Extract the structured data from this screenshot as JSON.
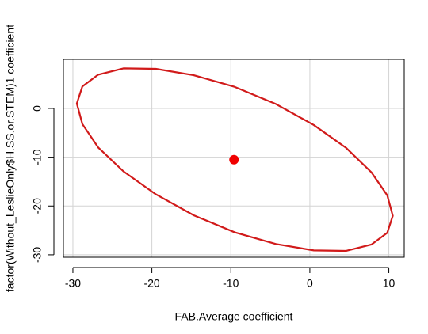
{
  "chart_data": {
    "type": "line",
    "x_label": "FAB.Average coefficient",
    "y_label": "factor(Without_LeslieOnly$H.SS.or.STEM)1 coefficient",
    "xlim": [
      -31.2,
      11.95
    ],
    "ylim": [
      -30.5,
      10.05
    ],
    "xticks": [
      -30,
      -20,
      -10,
      0,
      10
    ],
    "yticks": [
      -30,
      -20,
      -10,
      0
    ],
    "grid": true,
    "series": [
      {
        "color": "#d11a1a",
        "closed": true,
        "x": [
          10.5,
          9.8,
          7.8,
          4.6,
          0.5,
          -4.3,
          -9.5,
          -14.7,
          -19.5,
          -23.6,
          -26.8,
          -28.8,
          -29.5,
          -28.8,
          -26.8,
          -23.6,
          -19.5,
          -14.7,
          -9.5,
          -4.3,
          0.5,
          4.6,
          7.8,
          9.8
        ],
        "values": [
          -22.0,
          -17.8,
          -13.1,
          -8.1,
          -3.4,
          0.9,
          4.4,
          6.8,
          8.1,
          8.2,
          6.9,
          4.5,
          1.0,
          -3.2,
          -8.0,
          -12.9,
          -17.6,
          -21.9,
          -25.4,
          -27.8,
          -29.1,
          -29.2,
          -27.9,
          -25.5
        ]
      },
      {
        "color": "#f00000",
        "marker": "point",
        "x": [
          -9.6
        ],
        "values": [
          -10.5
        ]
      }
    ]
  }
}
